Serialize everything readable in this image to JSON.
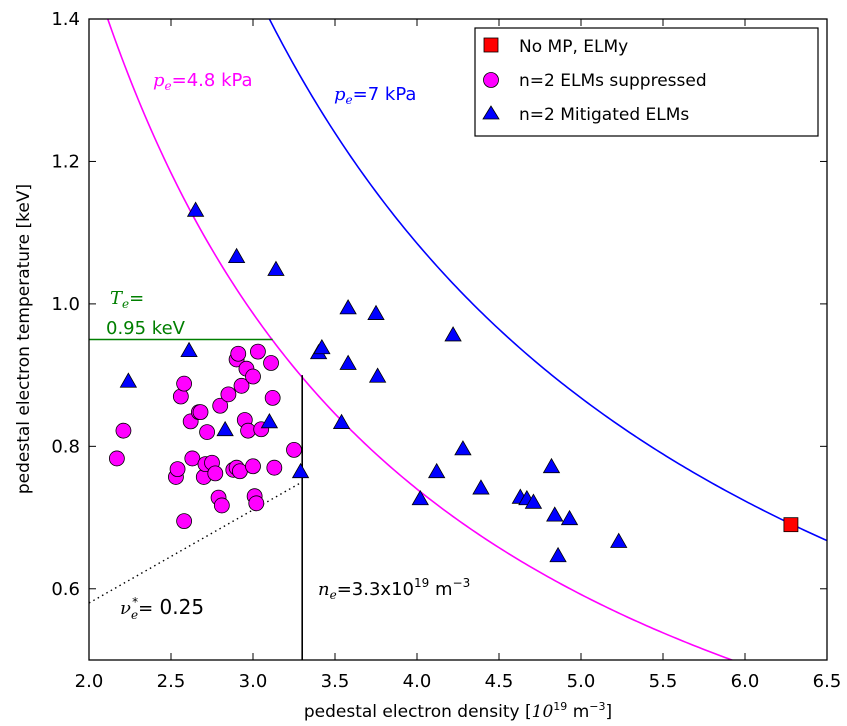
{
  "chart_data": {
    "type": "scatter",
    "xlabel_prefix": "pedestal electron density [",
    "xlabel_unit": "10",
    "xlabel_unit_exp": "19",
    "xlabel_suffix": " m",
    "xlabel_suffix_exp": "−3",
    "xlabel_close": "]",
    "ylabel": "pedestal electron temperature [keV]",
    "xlim": [
      2.0,
      6.5
    ],
    "ylim": [
      0.5,
      1.4
    ],
    "x_ticks": [
      "2.0",
      "2.5",
      "3.0",
      "3.5",
      "4.0",
      "4.5",
      "5.0",
      "5.5",
      "6.0",
      "6.5"
    ],
    "y_ticks": [
      "0.6",
      "0.8",
      "1.0",
      "1.2",
      "1.4"
    ],
    "legend_position": "top-right",
    "colors": {
      "noMP": "#ff0000",
      "suppressed": "#ff00ff",
      "mitigated": "#0000ff",
      "curve_low": "#ff00ff",
      "curve_high": "#0000ff",
      "te_line": "#007f00",
      "ne_line": "#000000"
    },
    "series": [
      {
        "name": "No MP, ELMy",
        "marker": "square",
        "color": "#ff0000",
        "points": [
          [
            6.28,
            0.69
          ]
        ]
      },
      {
        "name": "n=2 ELMs suppressed",
        "marker": "circle",
        "color": "#ff00ff",
        "points": [
          [
            2.17,
            0.783
          ],
          [
            2.21,
            0.822
          ],
          [
            2.53,
            0.757
          ],
          [
            2.54,
            0.768
          ],
          [
            2.56,
            0.87
          ],
          [
            2.58,
            0.888
          ],
          [
            2.58,
            0.695
          ],
          [
            2.62,
            0.835
          ],
          [
            2.63,
            0.783
          ],
          [
            2.67,
            0.848
          ],
          [
            2.68,
            0.848
          ],
          [
            2.7,
            0.757
          ],
          [
            2.71,
            0.775
          ],
          [
            2.72,
            0.82
          ],
          [
            2.75,
            0.777
          ],
          [
            2.77,
            0.762
          ],
          [
            2.79,
            0.728
          ],
          [
            2.8,
            0.857
          ],
          [
            2.81,
            0.717
          ],
          [
            2.85,
            0.873
          ],
          [
            2.88,
            0.767
          ],
          [
            2.9,
            0.77
          ],
          [
            2.9,
            0.922
          ],
          [
            2.91,
            0.93
          ],
          [
            2.92,
            0.765
          ],
          [
            2.93,
            0.885
          ],
          [
            2.95,
            0.837
          ],
          [
            2.96,
            0.909
          ],
          [
            2.97,
            0.822
          ],
          [
            3.0,
            0.898
          ],
          [
            3.0,
            0.772
          ],
          [
            3.01,
            0.73
          ],
          [
            3.02,
            0.72
          ],
          [
            3.03,
            0.933
          ],
          [
            3.05,
            0.824
          ],
          [
            3.11,
            0.917
          ],
          [
            3.12,
            0.868
          ],
          [
            3.13,
            0.77
          ],
          [
            3.25,
            0.795
          ]
        ]
      },
      {
        "name": "n=2 Mitigated ELMs",
        "marker": "triangle",
        "color": "#0000ff",
        "points": [
          [
            2.65,
            1.13
          ],
          [
            2.9,
            1.065
          ],
          [
            3.14,
            1.047
          ],
          [
            2.24,
            0.89
          ],
          [
            2.61,
            0.933
          ],
          [
            2.83,
            0.822
          ],
          [
            3.1,
            0.833
          ],
          [
            3.29,
            0.763
          ],
          [
            3.4,
            0.93
          ],
          [
            3.42,
            0.937
          ],
          [
            3.54,
            0.832
          ],
          [
            3.58,
            0.993
          ],
          [
            3.58,
            0.915
          ],
          [
            3.75,
            0.985
          ],
          [
            3.76,
            0.897
          ],
          [
            4.02,
            0.725
          ],
          [
            4.12,
            0.763
          ],
          [
            4.22,
            0.955
          ],
          [
            4.28,
            0.795
          ],
          [
            4.39,
            0.74
          ],
          [
            4.63,
            0.727
          ],
          [
            4.67,
            0.725
          ],
          [
            4.71,
            0.72
          ],
          [
            4.82,
            0.77
          ],
          [
            4.84,
            0.702
          ],
          [
            4.86,
            0.645
          ],
          [
            4.93,
            0.697
          ],
          [
            5.23,
            0.665
          ]
        ]
      }
    ],
    "curves": [
      {
        "kind": "isobar",
        "pressure_kPa": 4.8,
        "color": "#ff00ff",
        "label_math": "p",
        "label_sub": "e",
        "label_eq": "=4.8",
        "label_unit": " kPa"
      },
      {
        "kind": "isobar",
        "pressure_kPa": 7,
        "color": "#0000ff",
        "label_math": "p",
        "label_sub": "e",
        "label_eq": "=7",
        "label_unit": " kPa"
      }
    ],
    "reference_lines": {
      "te": {
        "y": 0.95,
        "x_from": 2.0,
        "x_to": 3.12,
        "line1_math": "T",
        "line1_sub": "e",
        "line1_eq": "=",
        "line2_value": "0.95",
        "line2_unit": " keV"
      },
      "ne": {
        "x": 3.3,
        "y_from": 0.5,
        "y_to": 0.9,
        "label_math": "n",
        "label_sub": "e",
        "label_eq": "=3.3",
        "label_x": "x10",
        "label_exp": "19",
        "label_unit": " m",
        "label_unit_exp": "−3"
      },
      "nu": {
        "from": [
          2.0,
          0.58
        ],
        "to": [
          3.3,
          0.75
        ],
        "label_math": "ν",
        "label_sub": "e",
        "label_sup": "*",
        "label_eq": "=",
        "label_value": " 0.25"
      }
    }
  }
}
